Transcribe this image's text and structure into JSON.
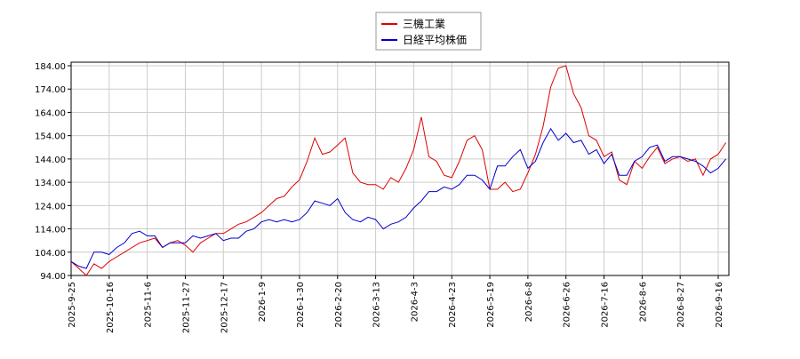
{
  "chart_data": {
    "type": "line",
    "categories": [
      "2025-9-25",
      null,
      null,
      null,
      null,
      "2025-10-16",
      null,
      null,
      null,
      null,
      "2025-11-6",
      null,
      null,
      null,
      null,
      "2025-11-27",
      null,
      null,
      null,
      null,
      "2025-12-17",
      null,
      null,
      null,
      null,
      "2026-1-9",
      null,
      null,
      null,
      null,
      "2026-1-30",
      null,
      null,
      null,
      null,
      "2026-2-20",
      null,
      null,
      null,
      null,
      "2026-3-13",
      null,
      null,
      null,
      null,
      "2026-4-3",
      null,
      null,
      null,
      null,
      "2026-4-23",
      null,
      null,
      null,
      null,
      "2026-5-19",
      null,
      null,
      null,
      null,
      "2026-6-8",
      null,
      null,
      null,
      null,
      "2026-6-26",
      null,
      null,
      null,
      null,
      "2026-7-16",
      null,
      null,
      null,
      null,
      "2026-8-6",
      null,
      null,
      null,
      null,
      "2026-8-27",
      null,
      null,
      null,
      null,
      "2026-9-16",
      null
    ],
    "series": [
      {
        "name": "三機工業",
        "color": "#dd0000",
        "values": [
          100,
          97,
          94,
          99,
          97,
          100,
          102,
          104,
          106,
          108,
          109,
          110,
          106,
          108,
          109,
          107,
          104,
          108,
          110,
          112,
          112,
          114,
          116,
          117,
          119,
          121,
          124,
          127,
          128,
          132,
          135,
          143,
          153,
          146,
          147,
          150,
          153,
          138,
          134,
          133,
          133,
          131,
          136,
          134,
          140,
          148,
          162,
          145,
          143,
          137,
          136,
          143,
          152,
          154,
          148,
          131,
          131,
          134,
          130,
          131,
          138,
          146,
          158,
          175,
          183,
          184,
          172,
          166,
          154,
          152,
          145,
          147,
          135,
          133,
          143,
          140,
          145,
          149,
          142,
          144,
          145,
          143,
          144,
          137,
          144,
          146,
          151
        ]
      },
      {
        "name": "日経平均株価",
        "color": "#0000cc",
        "values": [
          100,
          98,
          97,
          104,
          104,
          103,
          106,
          108,
          112,
          113,
          111,
          111,
          106,
          108,
          108,
          108,
          111,
          110,
          111,
          112,
          109,
          110,
          110,
          113,
          114,
          117,
          118,
          117,
          118,
          117,
          118,
          121,
          126,
          125,
          124,
          127,
          121,
          118,
          117,
          119,
          118,
          114,
          116,
          117,
          119,
          123,
          126,
          130,
          130,
          132,
          131,
          133,
          137,
          137,
          135,
          131,
          141,
          141,
          145,
          148,
          140,
          143,
          151,
          157,
          152,
          155,
          151,
          152,
          146,
          148,
          142,
          146,
          137,
          137,
          143,
          145,
          149,
          150,
          143,
          145,
          145,
          144,
          143,
          141,
          138,
          140,
          144
        ]
      }
    ],
    "ylim": [
      94,
      184
    ],
    "yticks": [
      {
        "value": 94,
        "label": "94.00"
      },
      {
        "value": 104,
        "label": "104.00"
      },
      {
        "value": 114,
        "label": "114.00"
      },
      {
        "value": 124,
        "label": "124.00"
      },
      {
        "value": 134,
        "label": "134.00"
      },
      {
        "value": 144,
        "label": "144.00"
      },
      {
        "value": 154,
        "label": "154.00"
      },
      {
        "value": 164,
        "label": "164.00"
      },
      {
        "value": 174,
        "label": "174.00"
      },
      {
        "value": 184,
        "label": "184.00"
      }
    ],
    "grid": true
  }
}
